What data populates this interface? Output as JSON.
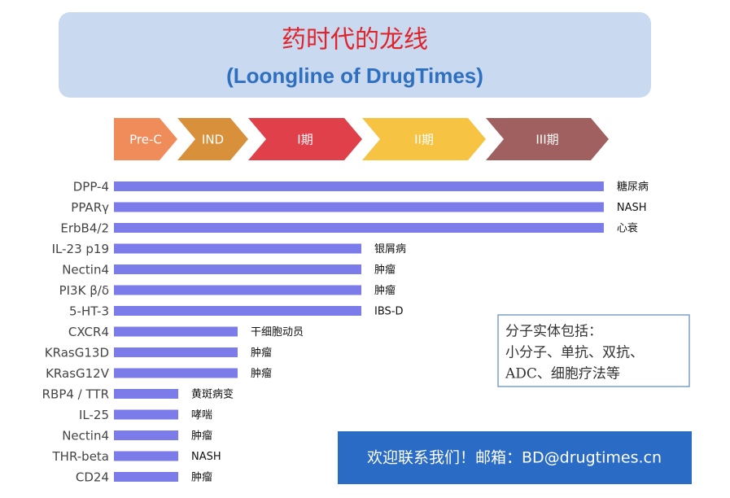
{
  "chart_data": {
    "type": "bar",
    "orientation": "horizontal",
    "title": "药时代的龙线",
    "subtitle": "(Loongline of DrugTimes)",
    "phases": [
      "Pre-C",
      "IND",
      "I期",
      "II期",
      "III期"
    ],
    "phase_colors": [
      "#f08c5a",
      "#d8903a",
      "#e0404a",
      "#f6c343",
      "#a06060"
    ],
    "categories": [
      "DPP-4",
      "PPARγ",
      "ErbB4/2",
      "IL-23 p19",
      "Nectin4",
      "PI3K β/δ",
      "5-HT-3",
      "CXCR4",
      "KRasG13D",
      "KRasG12V",
      "RBP4 / TTR",
      "IL-25",
      "Nectin4",
      "THR-beta",
      "CD24"
    ],
    "values": [
      99,
      99,
      99,
      50,
      50,
      50,
      50,
      25,
      25,
      25,
      13,
      13,
      13,
      13,
      13
    ],
    "annotations": [
      "糖尿病",
      "NASH",
      "心衰",
      "银屑病",
      "肿瘤",
      "肿瘤",
      "IBS-D",
      "干细胞动员",
      "肿瘤",
      "肿瘤",
      "黄斑病变",
      "哮喘",
      "肿瘤",
      "NASH",
      "肿瘤"
    ],
    "color": "#7b7bea",
    "xlim": [
      0,
      100
    ],
    "note": [
      "分子实体包括：",
      "小分子、单抗、双抗、",
      "ADC、细胞疗法等"
    ],
    "contact": "欢迎联系我们！邮箱：BD@drugtimes.cn"
  }
}
